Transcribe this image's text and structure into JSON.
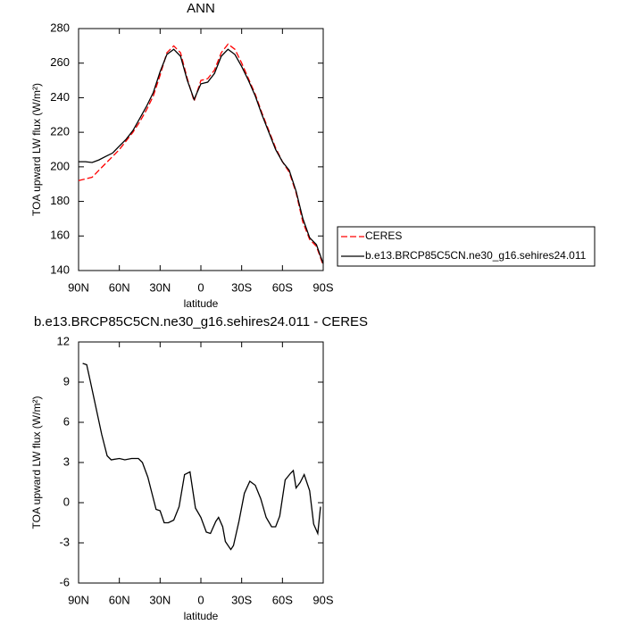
{
  "chart_data": [
    {
      "type": "line",
      "title": "ANN",
      "x_label": "latitude",
      "y_label": "TOA upward LW flux (W/m²)",
      "x": [
        90,
        85,
        80,
        75,
        70,
        65,
        60,
        55,
        50,
        45,
        40,
        35,
        30,
        25,
        20,
        15,
        10,
        5,
        0,
        -5,
        -10,
        -15,
        -20,
        -25,
        -30,
        -35,
        -40,
        -45,
        -50,
        -55,
        -60,
        -65,
        -70,
        -75,
        -80,
        -85,
        -90
      ],
      "series": [
        {
          "name": "CERES",
          "color": "#ff0000",
          "dashed": true,
          "values": [
            192,
            193,
            194,
            198,
            202,
            206,
            210,
            215,
            220,
            226,
            233,
            241,
            253,
            266,
            270,
            266,
            251,
            238,
            250,
            251,
            256,
            266,
            271,
            268,
            260,
            251,
            242,
            231,
            221,
            211,
            203,
            197,
            185,
            168,
            158,
            154,
            143
          ]
        },
        {
          "name": "b.e13.BRCP85C5CN.ne30_g16.sehires24.011",
          "color": "#000000",
          "dashed": false,
          "values": [
            203,
            203,
            202.5,
            204,
            206,
            208,
            212,
            216,
            221,
            228,
            235,
            243,
            255,
            265,
            268,
            264,
            250,
            239,
            248,
            249,
            254,
            264,
            268,
            265,
            258,
            250,
            241,
            230,
            220,
            210,
            203,
            198,
            186,
            170,
            159,
            155,
            144
          ]
        }
      ],
      "xlim": [
        90,
        -90
      ],
      "xticks": [
        {
          "value": 90,
          "label": "90N"
        },
        {
          "value": 60,
          "label": "60N"
        },
        {
          "value": 30,
          "label": "30N"
        },
        0,
        {
          "value": -30,
          "label": "30S"
        },
        {
          "value": -60,
          "label": "60S"
        },
        {
          "value": -90,
          "label": "90S"
        }
      ],
      "ylim": [
        140,
        280
      ],
      "yticks": [
        140,
        160,
        180,
        200,
        220,
        240,
        260,
        280
      ],
      "legend": "right"
    },
    {
      "type": "line",
      "title": "b.e13.BRCP85C5CN.ne30_g16.sehires24.011 - CERES",
      "x_label": "latitude",
      "y_label": "TOA upward LW flux (W/m²)",
      "x": [
        87,
        84,
        81,
        77,
        73,
        69,
        66,
        60,
        56,
        51,
        46,
        43,
        39,
        36,
        33,
        30,
        27,
        24,
        20,
        16,
        12,
        8,
        4,
        0,
        -4,
        -7,
        -11,
        -13,
        -16,
        -18,
        -22,
        -24,
        -28,
        -32,
        -36,
        -40,
        -44,
        -48,
        -52,
        -55,
        -58,
        -62,
        -66,
        -68,
        -70,
        -73,
        -76,
        -80,
        -83,
        -86,
        -88
      ],
      "values": [
        10.4,
        10.3,
        8.9,
        7.0,
        5.1,
        3.5,
        3.2,
        3.3,
        3.2,
        3.3,
        3.3,
        3.0,
        1.9,
        0.7,
        -0.5,
        -0.6,
        -1.5,
        -1.5,
        -1.3,
        -0.3,
        2.1,
        2.3,
        -0.4,
        -1.1,
        -2.2,
        -2.3,
        -1.4,
        -1.1,
        -1.8,
        -2.9,
        -3.5,
        -3.2,
        -1.4,
        0.7,
        1.6,
        1.3,
        0.3,
        -1.1,
        -1.8,
        -1.8,
        -1.0,
        1.7,
        2.2,
        2.4,
        1.1,
        1.5,
        2.1,
        0.9,
        -1.6,
        -2.3,
        -0.3
      ],
      "color": "#000000",
      "xlim": [
        90,
        -90
      ],
      "xticks": [
        {
          "value": 90,
          "label": "90N"
        },
        {
          "value": 60,
          "label": "60N"
        },
        {
          "value": 30,
          "label": "30N"
        },
        0,
        {
          "value": -30,
          "label": "30S"
        },
        {
          "value": -60,
          "label": "60S"
        },
        {
          "value": -90,
          "label": "90S"
        }
      ],
      "ylim": [
        -6,
        12
      ],
      "yticks": [
        -6,
        -3,
        0,
        3,
        6,
        9,
        12
      ]
    }
  ]
}
